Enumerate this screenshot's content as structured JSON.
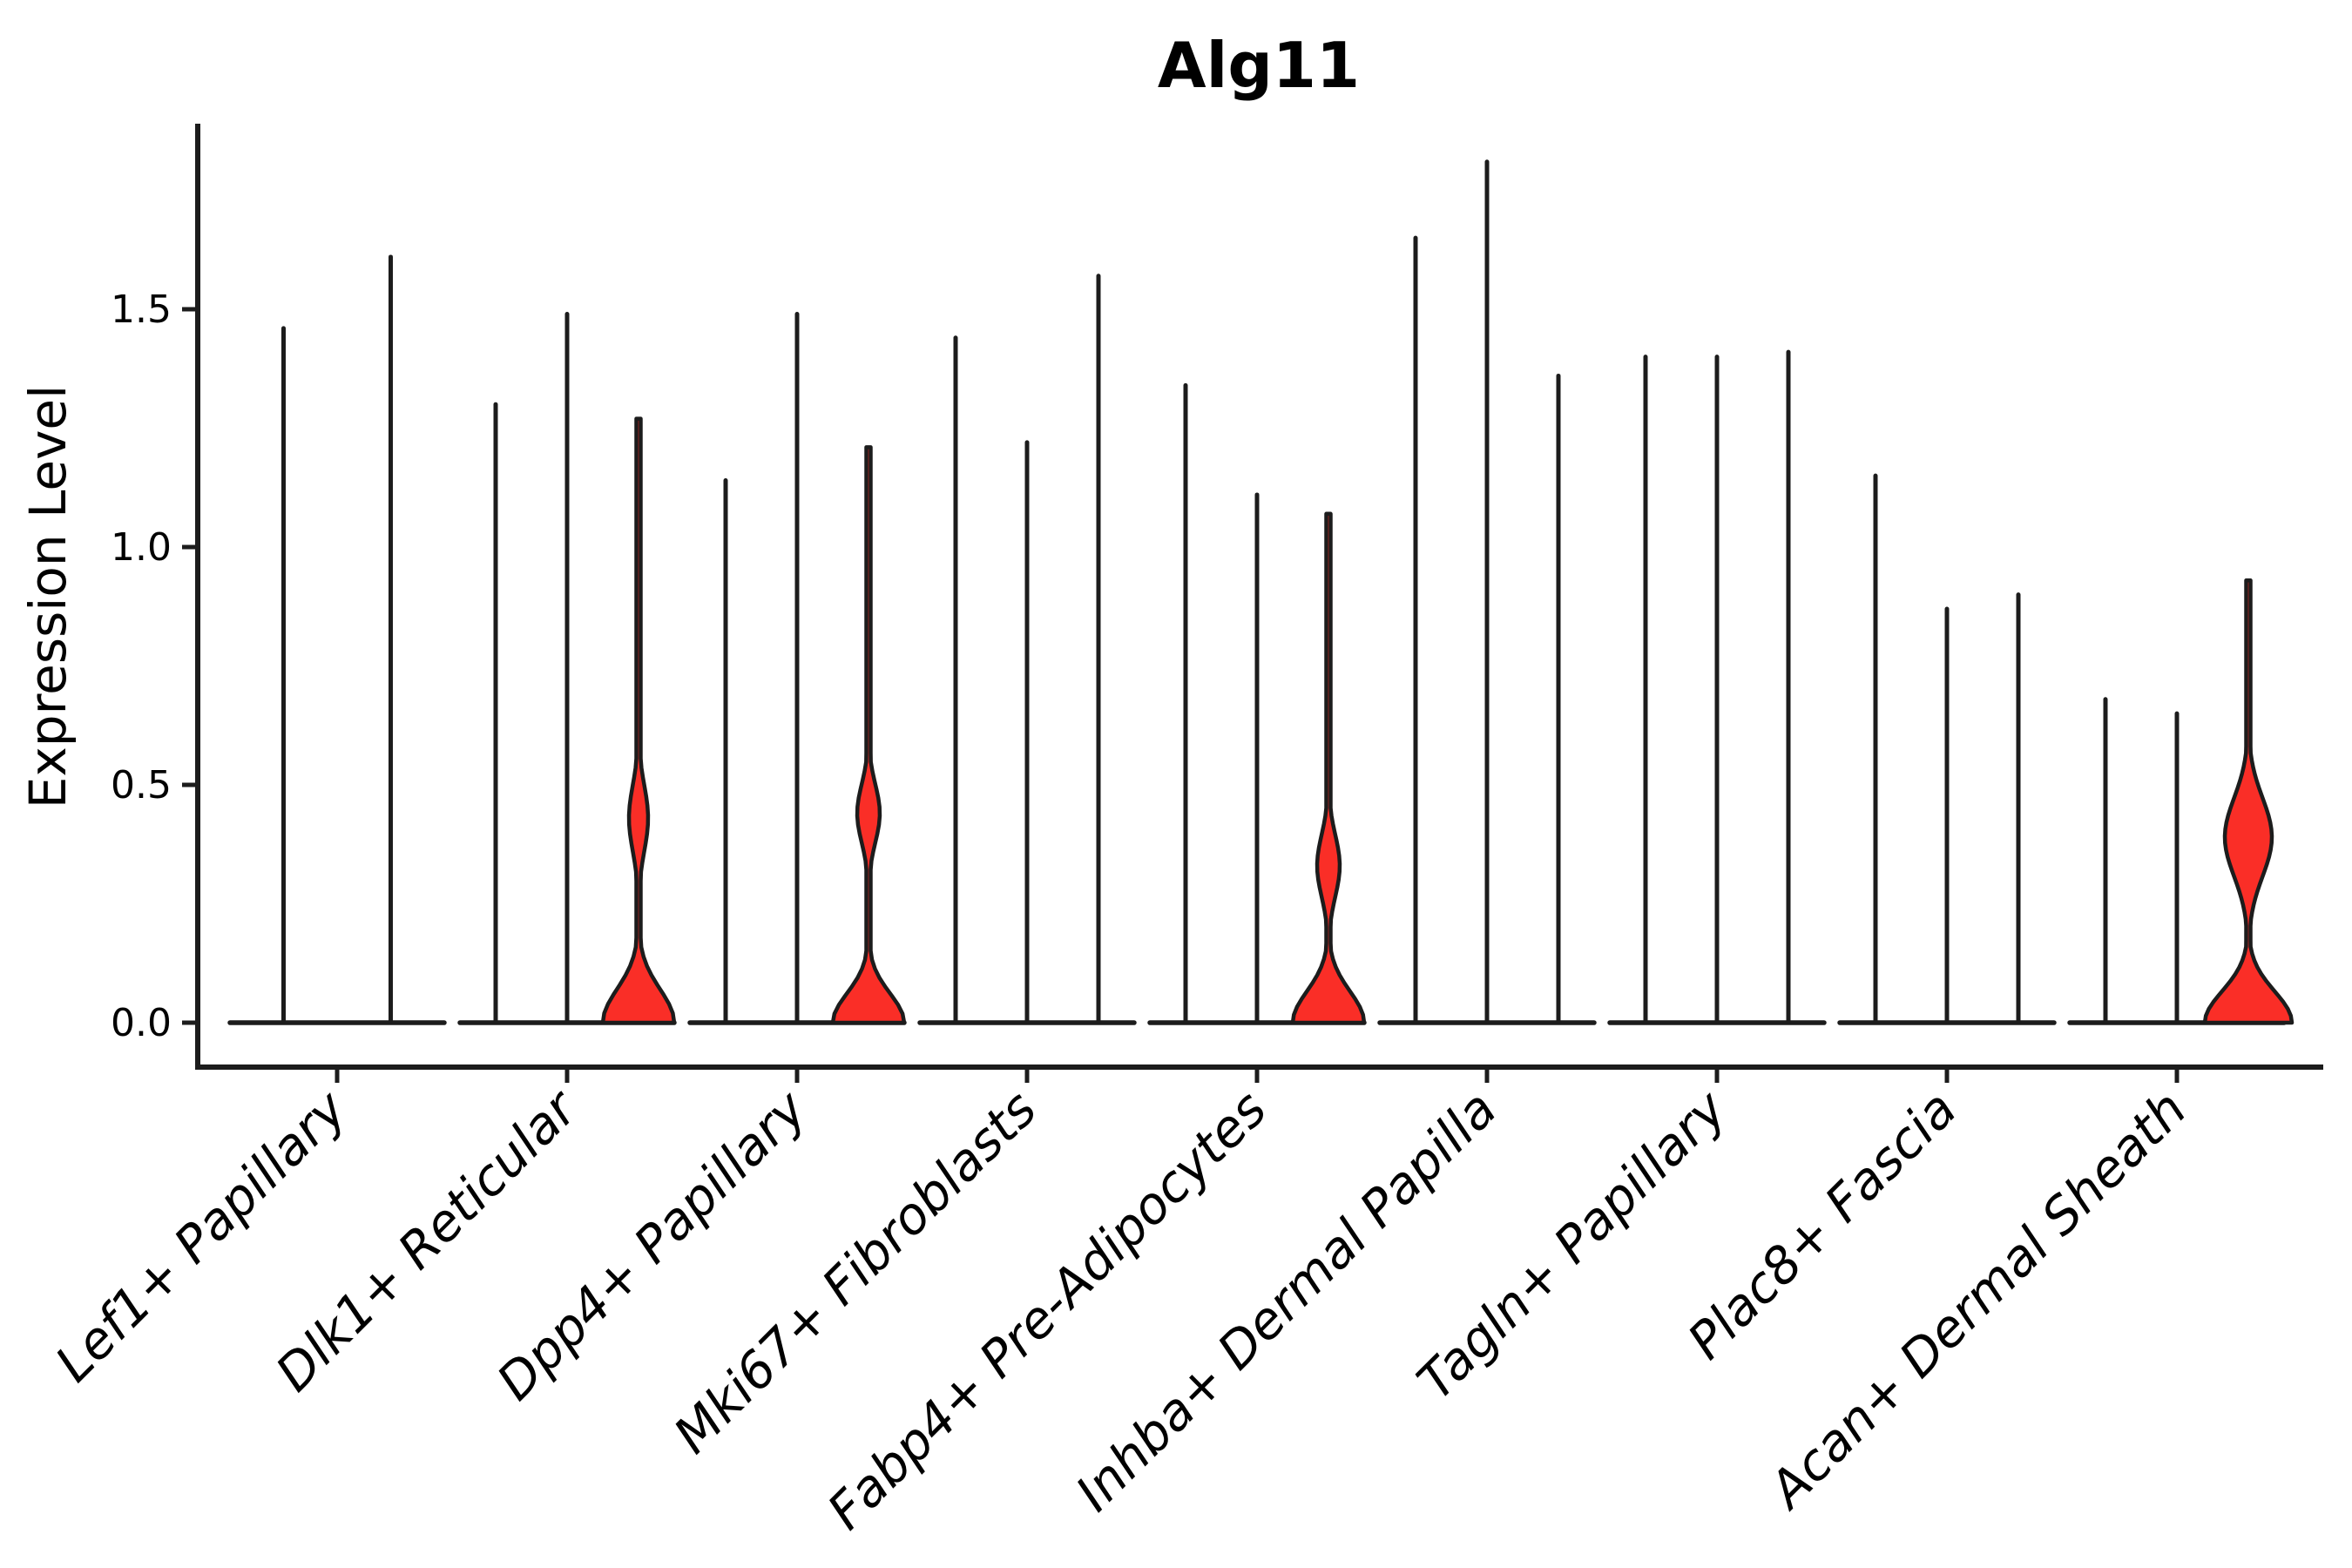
{
  "chart_data": {
    "type": "violin",
    "title": "Alg11",
    "ylabel": "Expression Level",
    "xlabel": "",
    "grid": false,
    "legend": null,
    "ylim": [
      -0.09,
      1.88
    ],
    "yticks": [
      {
        "value": 0.0,
        "label": "0.0"
      },
      {
        "value": 0.5,
        "label": "0.5"
      },
      {
        "value": 1.0,
        "label": "1.0"
      },
      {
        "value": 1.5,
        "label": "1.5"
      }
    ],
    "categories": [
      "Lef1+ Papillary",
      "Dlk1+ Reticular",
      "Dpp4+ Papillary",
      "Mki67+ Fibroblasts",
      "Fabp4+ Pre-Adipocytes",
      "Inhba+ Dermal Papilla",
      "Tagln+ Papillary",
      "Plac8+ Fascia",
      "Acan+ Dermal Sheath"
    ],
    "violin_fill_color": "#fa2e27",
    "ink_color": "#1c1c1c",
    "description": "Each category holds thin violins of near-zero expression; most mass sits at 0 with a thin spike to the max expression value. Four violins show a visible red density bulge.",
    "groups": [
      {
        "category": "Lef1+ Papillary",
        "violins": [
          {
            "max": 1.46,
            "bulge": null
          },
          {
            "max": 1.61,
            "bulge": null
          }
        ]
      },
      {
        "category": "Dlk1+ Reticular",
        "violins": [
          {
            "max": 1.3,
            "bulge": null
          },
          {
            "max": 1.49,
            "bulge": null
          },
          {
            "max": 1.27,
            "bulge": {
              "base_halfwidth": 41,
              "base_top": 0.16,
              "lens_lo": 0.27,
              "lens_peak": 0.43,
              "lens_hi": 0.62,
              "lens_halfwidth": 11
            }
          }
        ]
      },
      {
        "category": "Dpp4+ Papillary",
        "violins": [
          {
            "max": 1.14,
            "bulge": null
          },
          {
            "max": 1.49,
            "bulge": null
          },
          {
            "max": 1.21,
            "bulge": {
              "base_halfwidth": 41,
              "base_top": 0.14,
              "lens_lo": 0.29,
              "lens_peak": 0.44,
              "lens_hi": 0.6,
              "lens_halfwidth": 13
            }
          }
        ]
      },
      {
        "category": "Mki67+ Fibroblasts",
        "violins": [
          {
            "max": 1.44,
            "bulge": null
          },
          {
            "max": 1.22,
            "bulge": null
          },
          {
            "max": 1.57,
            "bulge": null
          }
        ]
      },
      {
        "category": "Fabp4+ Pre-Adipocytes",
        "violins": [
          {
            "max": 1.34,
            "bulge": null
          },
          {
            "max": 1.11,
            "bulge": null
          },
          {
            "max": 1.07,
            "bulge": {
              "base_halfwidth": 41,
              "base_top": 0.15,
              "lens_lo": 0.17,
              "lens_peak": 0.33,
              "lens_hi": 0.5,
              "lens_halfwidth": 13
            }
          }
        ]
      },
      {
        "category": "Inhba+ Dermal Papilla",
        "violins": [
          {
            "max": 1.65,
            "bulge": null
          },
          {
            "max": 1.81,
            "bulge": null
          },
          {
            "max": 1.36,
            "bulge": null
          }
        ]
      },
      {
        "category": "Tagln+ Papillary",
        "violins": [
          {
            "max": 1.4,
            "bulge": null
          },
          {
            "max": 1.4,
            "bulge": null
          },
          {
            "max": 1.41,
            "bulge": null
          }
        ]
      },
      {
        "category": "Plac8+ Fascia",
        "violins": [
          {
            "max": 1.15,
            "bulge": null
          },
          {
            "max": 0.87,
            "bulge": null
          },
          {
            "max": 0.9,
            "bulge": null
          }
        ]
      },
      {
        "category": "Acan+ Dermal Sheath",
        "violins": [
          {
            "max": 0.68,
            "bulge": null
          },
          {
            "max": 0.65,
            "bulge": null
          },
          {
            "max": 0.93,
            "bulge": {
              "base_halfwidth": 50,
              "base_top": 0.15,
              "lens_lo": 0.22,
              "lens_peak": 0.39,
              "lens_hi": 0.64,
              "lens_halfwidth": 27
            }
          }
        ]
      }
    ]
  }
}
